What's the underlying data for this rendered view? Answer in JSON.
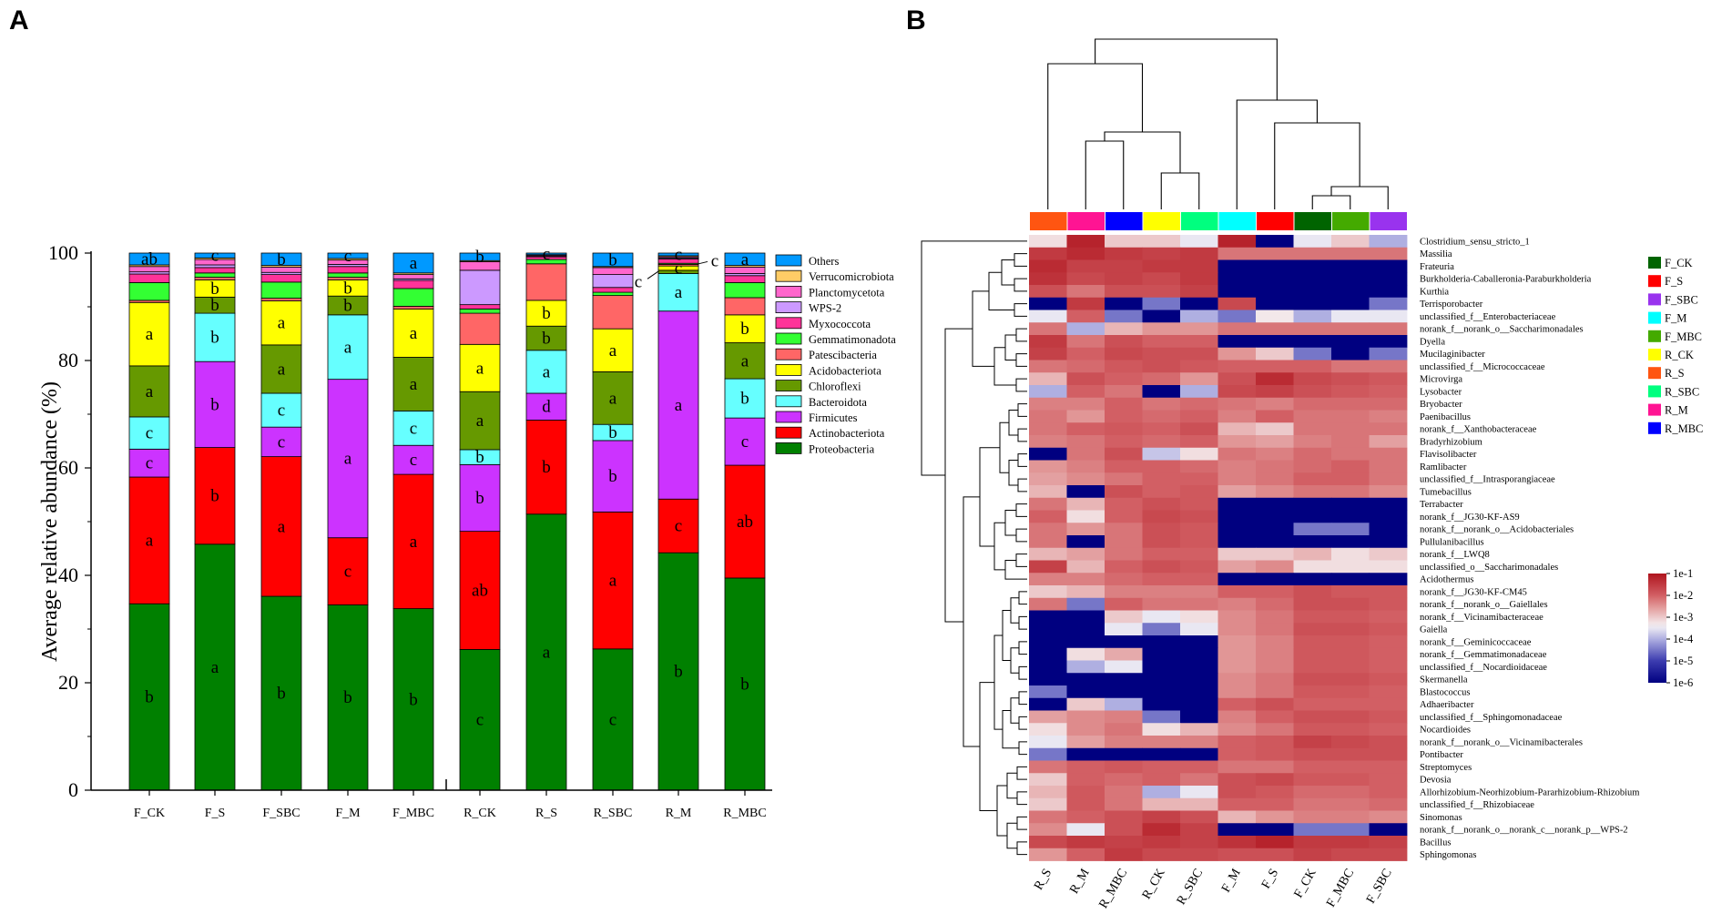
{
  "chart_data": [
    {
      "panel": "A",
      "type": "bar",
      "stacked": true,
      "ylabel": "Average relative abundance (%)",
      "ylim": [
        0,
        100
      ],
      "yticks": [
        "0",
        "20",
        "40",
        "60",
        "80",
        "100"
      ],
      "categories": [
        "F_CK",
        "F_S",
        "F_SBC",
        "F_M",
        "F_MBC",
        "R_CK",
        "R_S",
        "R_SBC",
        "R_M",
        "R_MBC"
      ],
      "legend_position": "right",
      "series": [
        {
          "name": "Proteobacteria",
          "color": "#008000",
          "values": [
            34.7,
            45.8,
            36.1,
            34.5,
            33.8,
            26.2,
            51.4,
            26.3,
            44.2,
            39.5
          ],
          "letters": [
            "b",
            "a",
            "b",
            "b",
            "b",
            "c",
            "a",
            "c",
            "b",
            "b"
          ]
        },
        {
          "name": "Actinobacteriota",
          "color": "#ff0000",
          "values": [
            23.6,
            18.0,
            26.0,
            12.5,
            25.0,
            22.0,
            17.5,
            25.5,
            10.0,
            21.0
          ],
          "letters": [
            "a",
            "b",
            "a",
            "c",
            "a",
            "ab",
            "b",
            "a",
            "c",
            "ab"
          ]
        },
        {
          "name": "Firmicutes",
          "color": "#cc33ff",
          "values": [
            5.2,
            16.0,
            5.5,
            29.5,
            5.4,
            12.4,
            5.0,
            13.3,
            35.0,
            8.8
          ],
          "letters": [
            "c",
            "b",
            "c",
            "a",
            "c",
            "b",
            "d",
            "b",
            "a",
            "c"
          ]
        },
        {
          "name": "Bacteroidota",
          "color": "#66ffff",
          "values": [
            6.0,
            9.0,
            6.3,
            12.0,
            6.4,
            2.8,
            8.0,
            3.0,
            7.0,
            7.3
          ],
          "letters": [
            "c",
            "b",
            "c",
            "a",
            "c",
            "b",
            "a",
            "b",
            "a",
            "b"
          ]
        },
        {
          "name": "Chloroflexi",
          "color": "#669900",
          "values": [
            9.5,
            3.0,
            9.0,
            3.5,
            10.0,
            10.8,
            4.5,
            9.8,
            0.6,
            6.7
          ],
          "letters": [
            "a",
            "b",
            "a",
            "b",
            "a",
            "a",
            "b",
            "a",
            "",
            "a"
          ]
        },
        {
          "name": "Acidobacteriota",
          "color": "#ffff00",
          "values": [
            11.8,
            3.2,
            8.2,
            3.0,
            9.0,
            8.8,
            4.8,
            8.0,
            0.8,
            5.2
          ],
          "letters": [
            "a",
            "b",
            "a",
            "b",
            "a",
            "a",
            "b",
            "a",
            "c",
            "b"
          ]
        },
        {
          "name": "Patescibacteria",
          "color": "#ff6666",
          "values": [
            0.4,
            0.5,
            0.5,
            0.5,
            0.5,
            5.8,
            6.8,
            6.2,
            0.3,
            3.2
          ],
          "letters": []
        },
        {
          "name": "Gemmatimonadota",
          "color": "#33ff33",
          "values": [
            3.3,
            0.8,
            3.0,
            0.8,
            3.3,
            0.8,
            0.8,
            0.6,
            0.2,
            2.8
          ],
          "letters": []
        },
        {
          "name": "Myxococcota",
          "color": "#ff3399",
          "values": [
            1.6,
            1.0,
            1.4,
            1.2,
            1.5,
            0.8,
            0.5,
            0.9,
            0.8,
            1.3
          ],
          "letters": []
        },
        {
          "name": "WPS-2",
          "color": "#cc99ff",
          "values": [
            0.4,
            0.5,
            0.4,
            0.4,
            0.3,
            6.4,
            0.1,
            2.4,
            0.2,
            0.4
          ],
          "letters": []
        },
        {
          "name": "Planctomycetota",
          "color": "#ff66cc",
          "values": [
            1.0,
            1.0,
            1.0,
            0.8,
            0.8,
            1.6,
            0.2,
            1.3,
            0.2,
            1.2
          ],
          "letters": []
        },
        {
          "name": "Verrucomicrobiota",
          "color": "#ffcc66",
          "values": [
            0.3,
            0.3,
            0.3,
            0.3,
            0.3,
            0.2,
            0.1,
            0.2,
            0.2,
            0.3
          ],
          "letters": []
        },
        {
          "name": "Others",
          "color": "#0099ff",
          "values": [
            2.2,
            0.9,
            2.3,
            1.0,
            3.7,
            1.4,
            0.3,
            2.5,
            0.5,
            2.3
          ],
          "letters": [
            "ab",
            "c",
            "b",
            "c",
            "a",
            "b",
            "c",
            "b",
            "c",
            "a"
          ]
        }
      ],
      "annotations": [
        "c",
        "c"
      ]
    },
    {
      "panel": "B",
      "type": "heatmap",
      "colorbar_ticks": [
        "1e-1",
        "1e-2",
        "1e-3",
        "1e-4",
        "1e-5",
        "1e-6"
      ],
      "columns": [
        "R_S",
        "R_M",
        "R_MBC",
        "R_CK",
        "R_SBC",
        "F_M",
        "F_S",
        "F_CK",
        "F_MBC",
        "F_SBC"
      ],
      "column_colors": [
        "#ff5511",
        "#ff1493",
        "#0000ff",
        "#ffff00",
        "#00ff7f",
        "#00ffff",
        "#ff0000",
        "#006400",
        "#44aa00",
        "#9933ee"
      ],
      "group_legend": [
        {
          "label": "F_CK",
          "color": "#006400"
        },
        {
          "label": "F_S",
          "color": "#ff0000"
        },
        {
          "label": "F_SBC",
          "color": "#9933ee"
        },
        {
          "label": "F_M",
          "color": "#00ffff"
        },
        {
          "label": "F_MBC",
          "color": "#44aa00"
        },
        {
          "label": "R_CK",
          "color": "#ffff00"
        },
        {
          "label": "R_S",
          "color": "#ff5511"
        },
        {
          "label": "R_SBC",
          "color": "#00ff7f"
        },
        {
          "label": "R_M",
          "color": "#ff1493"
        },
        {
          "label": "R_MBC",
          "color": "#0000ff"
        }
      ],
      "rows": [
        "Clostridium_sensu_stricto_1",
        "Massilia",
        "Frateuria",
        "Burkholderia-Caballeronia-Paraburkholderia",
        "Kurthia",
        "Terrisporobacter",
        "unclassified_f__Enterobacteriaceae",
        "norank_f__norank_o__Saccharimonadales",
        "Dyella",
        "Mucilaginibacter",
        "unclassified_f__Micrococcaceae",
        "Microvirga",
        "Lysobacter",
        "Bryobacter",
        "Paenibacillus",
        "norank_f__Xanthobacteraceae",
        "Bradyrhizobium",
        "Flavisolibacter",
        "Ramlibacter",
        "unclassified_f__Intrasporangiaceae",
        "Tumebacillus",
        "Terrabacter",
        "norank_f__JG30-KF-AS9",
        "norank_f__norank_o__Acidobacteriales",
        "Pullulanibacillus",
        "norank_f__LWQ8",
        "unclassified_o__Saccharimonadales",
        "Acidothermus",
        "norank_f__JG30-KF-CM45",
        "norank_f__norank_o__Gaiellales",
        "norank_f__Vicinamibacteraceae",
        "Gaiella",
        "norank_f__Geminicoccaceae",
        "norank_f__Gemmatimonadaceae",
        "unclassified_f__Nocardioidaceae",
        "Skermanella",
        "Blastococcus",
        "Adhaeribacter",
        "unclassified_f__Sphingomonadaceae",
        "Nocardioides",
        "norank_f__norank_o__Vicinamibacterales",
        "Pontibacter",
        "Streptomyces",
        "Devosia",
        "Allorhizobium-Neorhizobium-Pararhizobium-Rhizobium",
        "unclassified_f__Rhizobiaceae",
        "Sinomonas",
        "norank_f__norank_o__norank_c__norank_p__WPS-2",
        "Bacillus",
        "Sphingomonas"
      ],
      "values_log10": [
        [
          -3.2,
          -1.2,
          -3.0,
          -3.0,
          -3.5,
          -1.2,
          -6,
          -3.5,
          -3.0,
          -4.0
        ],
        [
          -1.5,
          -1.3,
          -1.5,
          -1.6,
          -1.5,
          -2.2,
          -2.2,
          -2.2,
          -2.2,
          -2.2
        ],
        [
          -1.3,
          -1.6,
          -1.6,
          -1.5,
          -1.5,
          -6,
          -6,
          -6,
          -6,
          -6
        ],
        [
          -1.4,
          -1.7,
          -1.6,
          -1.7,
          -1.5,
          -6,
          -6,
          -6,
          -6,
          -6
        ],
        [
          -1.8,
          -2.2,
          -1.8,
          -1.8,
          -1.6,
          -6,
          -6,
          -6,
          -6,
          -6
        ],
        [
          -6,
          -1.5,
          -6,
          -4.5,
          -6,
          -1.7,
          -6,
          -6,
          -6,
          -4.5
        ],
        [
          -3.5,
          -2.0,
          -4.5,
          -6,
          -4.0,
          -4.5,
          -3.3,
          -4.0,
          -3.5,
          -3.5
        ],
        [
          -2.2,
          -4.0,
          -2.8,
          -2.5,
          -2.5,
          -2.2,
          -2.2,
          -2.2,
          -2.2,
          -2.2
        ],
        [
          -1.5,
          -2.2,
          -1.8,
          -2.0,
          -2.0,
          -6,
          -6,
          -6,
          -6,
          -6
        ],
        [
          -1.6,
          -2.0,
          -1.7,
          -1.8,
          -1.8,
          -2.5,
          -3.0,
          -4.5,
          -6,
          -4.5
        ],
        [
          -2.2,
          -2.1,
          -1.9,
          -1.8,
          -1.9,
          -2.0,
          -2.0,
          -2.0,
          -2.2,
          -2.2
        ],
        [
          -2.8,
          -1.8,
          -2.0,
          -2.1,
          -2.5,
          -1.8,
          -1.3,
          -1.7,
          -1.8,
          -1.9
        ],
        [
          -4.0,
          -2.0,
          -2.2,
          -6,
          -4.0,
          -1.7,
          -1.6,
          -1.8,
          -1.9,
          -2.0
        ],
        [
          -2.3,
          -2.3,
          -2.0,
          -2.2,
          -2.1,
          -2.2,
          -2.3,
          -2.1,
          -2.1,
          -2.1
        ],
        [
          -2.2,
          -2.5,
          -2.0,
          -2.1,
          -2.0,
          -2.3,
          -2.0,
          -2.2,
          -2.2,
          -2.3
        ],
        [
          -2.2,
          -2.0,
          -1.9,
          -2.0,
          -1.8,
          -2.8,
          -3.0,
          -2.2,
          -2.2,
          -2.2
        ],
        [
          -2.3,
          -2.2,
          -2.0,
          -2.1,
          -2.0,
          -2.5,
          -2.6,
          -2.3,
          -2.2,
          -2.6
        ],
        [
          -6,
          -2.2,
          -1.8,
          -3.8,
          -3.2,
          -2.2,
          -2.3,
          -2.1,
          -2.2,
          -2.2
        ],
        [
          -2.5,
          -2.3,
          -2.0,
          -2.0,
          -2.1,
          -2.3,
          -2.2,
          -2.1,
          -2.0,
          -2.2
        ],
        [
          -2.6,
          -2.4,
          -2.2,
          -2.0,
          -2.0,
          -2.3,
          -2.2,
          -2.0,
          -2.0,
          -2.2
        ],
        [
          -2.8,
          -6,
          -1.8,
          -2.0,
          -1.9,
          -2.6,
          -2.4,
          -2.2,
          -2.2,
          -2.4
        ],
        [
          -2.2,
          -2.8,
          -2.0,
          -1.8,
          -1.9,
          -6,
          -6,
          -6,
          -6,
          -6
        ],
        [
          -2.0,
          -3.2,
          -2.0,
          -1.7,
          -1.8,
          -6,
          -6,
          -6,
          -6,
          -6
        ],
        [
          -2.2,
          -2.5,
          -2.2,
          -1.8,
          -1.9,
          -6,
          -6,
          -4.5,
          -4.5,
          -6
        ],
        [
          -2.2,
          -6,
          -2.2,
          -1.8,
          -1.9,
          -6,
          -6,
          -6,
          -6,
          -6
        ],
        [
          -2.8,
          -2.6,
          -2.2,
          -2.0,
          -2.0,
          -3.0,
          -3.0,
          -2.8,
          -3.2,
          -3.0
        ],
        [
          -1.6,
          -2.8,
          -2.0,
          -1.8,
          -1.9,
          -2.6,
          -2.4,
          -3.2,
          -3.2,
          -3.2
        ],
        [
          -2.3,
          -2.3,
          -2.1,
          -2.0,
          -2.0,
          -6,
          -6,
          -6,
          -6,
          -6
        ],
        [
          -3.0,
          -2.8,
          -2.3,
          -2.3,
          -2.3,
          -2.0,
          -2.0,
          -1.8,
          -1.9,
          -1.9
        ],
        [
          -2.2,
          -4.5,
          -2.0,
          -2.2,
          -2.2,
          -2.3,
          -2.1,
          -1.8,
          -1.8,
          -1.9
        ],
        [
          -6,
          -6,
          -3.0,
          -3.5,
          -3.2,
          -2.4,
          -2.2,
          -1.9,
          -1.9,
          -2.0
        ],
        [
          -6,
          -6,
          -3.5,
          -4.5,
          -3.5,
          -2.4,
          -2.2,
          -1.8,
          -1.8,
          -1.9
        ],
        [
          -6,
          -6,
          -6,
          -6,
          -6,
          -2.5,
          -2.3,
          -1.9,
          -1.9,
          -2.0
        ],
        [
          -6,
          -3.2,
          -2.7,
          -6,
          -6,
          -2.5,
          -2.3,
          -1.9,
          -1.9,
          -2.0
        ],
        [
          -6,
          -4.0,
          -3.5,
          -6,
          -6,
          -2.5,
          -2.3,
          -1.9,
          -1.9,
          -2.0
        ],
        [
          -6,
          -6,
          -6,
          -6,
          -6,
          -2.4,
          -2.2,
          -1.8,
          -1.8,
          -1.9
        ],
        [
          -4.5,
          -6,
          -6,
          -6,
          -6,
          -2.4,
          -2.2,
          -1.9,
          -1.9,
          -2.0
        ],
        [
          -6,
          -3.0,
          -4.0,
          -6,
          -6,
          -2.0,
          -1.8,
          -2.0,
          -2.0,
          -2.0
        ],
        [
          -2.6,
          -2.4,
          -2.3,
          -4.5,
          -6,
          -2.3,
          -2.0,
          -1.8,
          -1.8,
          -1.9
        ],
        [
          -3.2,
          -2.4,
          -2.2,
          -3.2,
          -2.8,
          -2.4,
          -2.2,
          -1.9,
          -1.9,
          -2.0
        ],
        [
          -3.5,
          -2.6,
          -2.3,
          -2.3,
          -2.3,
          -2.0,
          -1.9,
          -1.6,
          -1.7,
          -1.8
        ],
        [
          -4.5,
          -6,
          -6,
          -6,
          -6,
          -2.0,
          -1.9,
          -1.8,
          -1.8,
          -1.8
        ],
        [
          -2.2,
          -2.0,
          -1.9,
          -2.0,
          -2.0,
          -2.2,
          -2.2,
          -2.0,
          -2.0,
          -2.0
        ],
        [
          -3.0,
          -2.0,
          -2.1,
          -2.0,
          -2.2,
          -1.8,
          -1.7,
          -1.9,
          -1.9,
          -2.0
        ],
        [
          -2.8,
          -1.9,
          -2.2,
          -4.0,
          -3.5,
          -1.8,
          -1.9,
          -2.1,
          -2.1,
          -2.0
        ],
        [
          -3.0,
          -1.9,
          -2.2,
          -2.8,
          -2.8,
          -2.0,
          -2.0,
          -2.2,
          -2.2,
          -2.1
        ],
        [
          -2.2,
          -2.0,
          -1.8,
          -1.6,
          -1.8,
          -2.8,
          -2.5,
          -2.3,
          -2.3,
          -2.4
        ],
        [
          -2.4,
          -3.5,
          -1.8,
          -1.3,
          -1.6,
          -6,
          -6,
          -4.5,
          -4.5,
          -6
        ],
        [
          -1.7,
          -1.5,
          -1.6,
          -1.5,
          -1.6,
          -1.4,
          -1.2,
          -1.5,
          -1.5,
          -1.6
        ],
        [
          -2.5,
          -2.0,
          -1.5,
          -1.7,
          -1.7,
          -1.8,
          -1.8,
          -1.6,
          -1.7,
          -1.7
        ]
      ]
    }
  ]
}
